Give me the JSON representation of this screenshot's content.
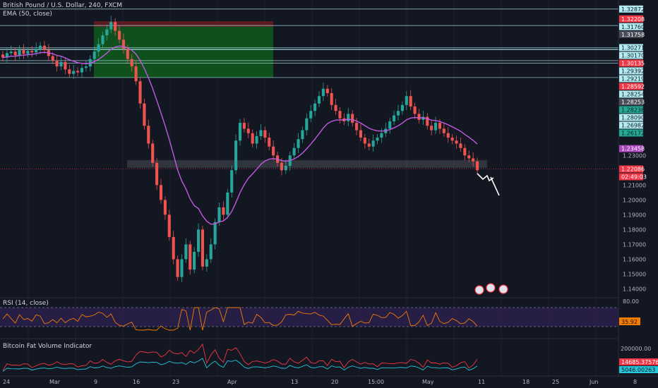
{
  "chart_data": {
    "type": "candlestick",
    "title": "British Pound / U.S. Dollar, 240, FXCM",
    "indicator_label": "EMA (50, close)",
    "x_ticks": [
      "24",
      "Mar",
      "9",
      "16",
      "23",
      "Apr",
      "13",
      "20",
      "15:00",
      "May",
      "11",
      "18",
      "25",
      "Jun",
      "8"
    ],
    "price_ticks": [
      "1.23000",
      "1.21000",
      "1.20000",
      "1.19000",
      "1.18000",
      "1.17000",
      "1.16000",
      "1.15000",
      "1.14000"
    ],
    "price_range": [
      1.135,
      1.331
    ],
    "level_lines": [
      1.32872,
      1.31758,
      1.30271,
      1.3017,
      1.30135,
      1.29392,
      1.29219,
      1.28254,
      1.22086
    ],
    "price_tags": [
      {
        "text": "1.32872",
        "value": 1.32872,
        "color": "#b2ebf2",
        "fg": "#131722"
      },
      {
        "text": "1.32208",
        "value": 1.32208,
        "color": "#f23645",
        "fg": "#ffffff"
      },
      {
        "text": "1.31760",
        "value": 1.3176,
        "color": "#b2ebf2",
        "fg": "#131722"
      },
      {
        "text": "1.31758",
        "value": 1.31758,
        "color": "#4a4e59",
        "fg": "#ffffff"
      },
      {
        "text": "1.30271",
        "value": 1.30271,
        "color": "#b2ebf2",
        "fg": "#131722"
      },
      {
        "text": "1.30170",
        "value": 1.3017,
        "color": "#b2ebf2",
        "fg": "#131722"
      },
      {
        "text": "1.30135",
        "value": 1.30135,
        "color": "#f23645",
        "fg": "#ffffff"
      },
      {
        "text": "1.29392",
        "value": 1.29392,
        "color": "#b2ebf2",
        "fg": "#131722"
      },
      {
        "text": "1.29219",
        "value": 1.29219,
        "color": "#b2ebf2",
        "fg": "#131722"
      },
      {
        "text": "1.28592",
        "value": 1.28592,
        "color": "#f23645",
        "fg": "#ffffff"
      },
      {
        "text": "1.28254",
        "value": 1.28254,
        "color": "#b2ebf2",
        "fg": "#131722"
      },
      {
        "text": "1.28253",
        "value": 1.28253,
        "color": "#4a4e59",
        "fg": "#ffffff"
      },
      {
        "text": "1.28238",
        "value": 1.28238,
        "color": "#22ab94",
        "fg": "#131722"
      },
      {
        "text": "1.26982",
        "value": 1.26982,
        "color": "#b2ebf2",
        "fg": "#131722"
      },
      {
        "text": "1.28090",
        "value": 1.2809,
        "color": "#b2ebf2",
        "fg": "#131722"
      },
      {
        "text": "1.26172",
        "value": 1.26172,
        "color": "#22ab94",
        "fg": "#131722"
      },
      {
        "text": "1.23458",
        "value": 1.23458,
        "color": "#ab47bc",
        "fg": "#ffffff"
      },
      {
        "text": "1.22086",
        "value": 1.22086,
        "color": "#f23645",
        "fg": "#ffffff"
      },
      {
        "text": "02:49:03",
        "value": 1.217,
        "color": "#f23645",
        "fg": "#ffffff"
      }
    ],
    "candle_closes": [
      1.296,
      1.299,
      1.3,
      1.2975,
      1.301,
      1.2985,
      1.3005,
      1.2995,
      1.302,
      1.304,
      1.301,
      1.297,
      1.294,
      1.29,
      1.293,
      1.288,
      1.285,
      1.287,
      1.286,
      1.289,
      1.29,
      1.295,
      1.3,
      1.305,
      1.311,
      1.315,
      1.32,
      1.314,
      1.308,
      1.302,
      1.295,
      1.29,
      1.28,
      1.265,
      1.25,
      1.238,
      1.225,
      1.21,
      1.2,
      1.19,
      1.175,
      1.16,
      1.148,
      1.16,
      1.17,
      1.153,
      1.165,
      1.18,
      1.155,
      1.16,
      1.17,
      1.185,
      1.195,
      1.19,
      1.205,
      1.22,
      1.24,
      1.252,
      1.248,
      1.245,
      1.238,
      1.243,
      1.247,
      1.242,
      1.236,
      1.23,
      1.225,
      1.22,
      1.223,
      1.23,
      1.235,
      1.241,
      1.247,
      1.255,
      1.26,
      1.265,
      1.27,
      1.275,
      1.272,
      1.264,
      1.26,
      1.255,
      1.253,
      1.258,
      1.252,
      1.247,
      1.242,
      1.238,
      1.236,
      1.24,
      1.242,
      1.245,
      1.248,
      1.253,
      1.257,
      1.26,
      1.264,
      1.27,
      1.263,
      1.258,
      1.254,
      1.256,
      1.25,
      1.247,
      1.252,
      1.248,
      1.245,
      1.242,
      1.24,
      1.238,
      1.235,
      1.23,
      1.228,
      1.226,
      1.22
    ],
    "rsi": {
      "label": "RSI (14, close)",
      "ticks": [
        "80.00"
      ],
      "value_tag": "35.92",
      "range": [
        0,
        100
      ]
    },
    "volume": {
      "label": "Bitcoin Fat Volume Indicator",
      "ticks": [
        "200000.00"
      ],
      "tags": [
        "14685.37576",
        "5046.00263"
      ]
    }
  }
}
